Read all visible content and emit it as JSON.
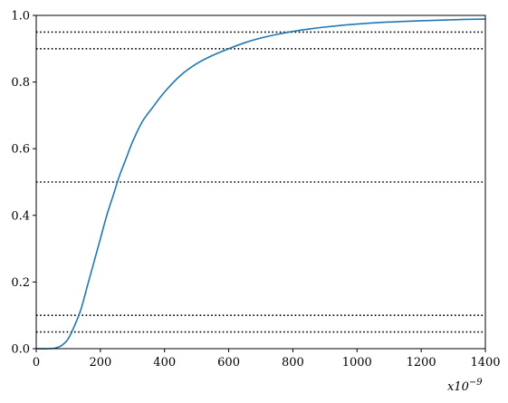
{
  "chart_data": {
    "type": "line",
    "title": "",
    "xlabel": "",
    "ylabel": "",
    "x_offset_label": "x10",
    "x_offset_exponent": "−9",
    "xlim": [
      0,
      1400
    ],
    "ylim": [
      0,
      1
    ],
    "xticks": [
      {
        "value": 0,
        "label": "0"
      },
      {
        "value": 200,
        "label": "200"
      },
      {
        "value": 400,
        "label": "400"
      },
      {
        "value": 600,
        "label": "600"
      },
      {
        "value": 800,
        "label": "800"
      },
      {
        "value": 1000,
        "label": "1000"
      },
      {
        "value": 1200,
        "label": "1200"
      },
      {
        "value": 1400,
        "label": "1400"
      }
    ],
    "yticks": [
      {
        "value": 0,
        "label": "0.0"
      },
      {
        "value": 0.2,
        "label": "0.2"
      },
      {
        "value": 0.4,
        "label": "0.4"
      },
      {
        "value": 0.6,
        "label": "0.6"
      },
      {
        "value": 0.8,
        "label": "0.8"
      },
      {
        "value": 1.0,
        "label": "1.0"
      }
    ],
    "grid": false,
    "series": [
      {
        "color": "#1f77b4",
        "x": [
          0,
          40,
          60,
          80,
          100,
          120,
          140,
          160,
          180,
          200,
          220,
          240,
          260,
          280,
          300,
          330,
          360,
          400,
          450,
          500,
          550,
          600,
          650,
          700,
          750,
          800,
          850,
          900,
          950,
          1000,
          1100,
          1200,
          1300,
          1400
        ],
        "y": [
          0,
          0.0,
          0.002,
          0.01,
          0.03,
          0.07,
          0.12,
          0.19,
          0.26,
          0.33,
          0.4,
          0.46,
          0.52,
          0.57,
          0.62,
          0.68,
          0.72,
          0.77,
          0.82,
          0.855,
          0.88,
          0.9,
          0.918,
          0.932,
          0.943,
          0.952,
          0.959,
          0.965,
          0.97,
          0.974,
          0.98,
          0.984,
          0.987,
          0.989
        ]
      }
    ],
    "reference_lines": [
      {
        "y": 0.05,
        "style": "dotted",
        "color": "#000000"
      },
      {
        "y": 0.1,
        "style": "dotted",
        "color": "#000000"
      },
      {
        "y": 0.5,
        "style": "dotted",
        "color": "#000000"
      },
      {
        "y": 0.9,
        "style": "dotted",
        "color": "#000000"
      },
      {
        "y": 0.95,
        "style": "dotted",
        "color": "#000000"
      }
    ]
  }
}
